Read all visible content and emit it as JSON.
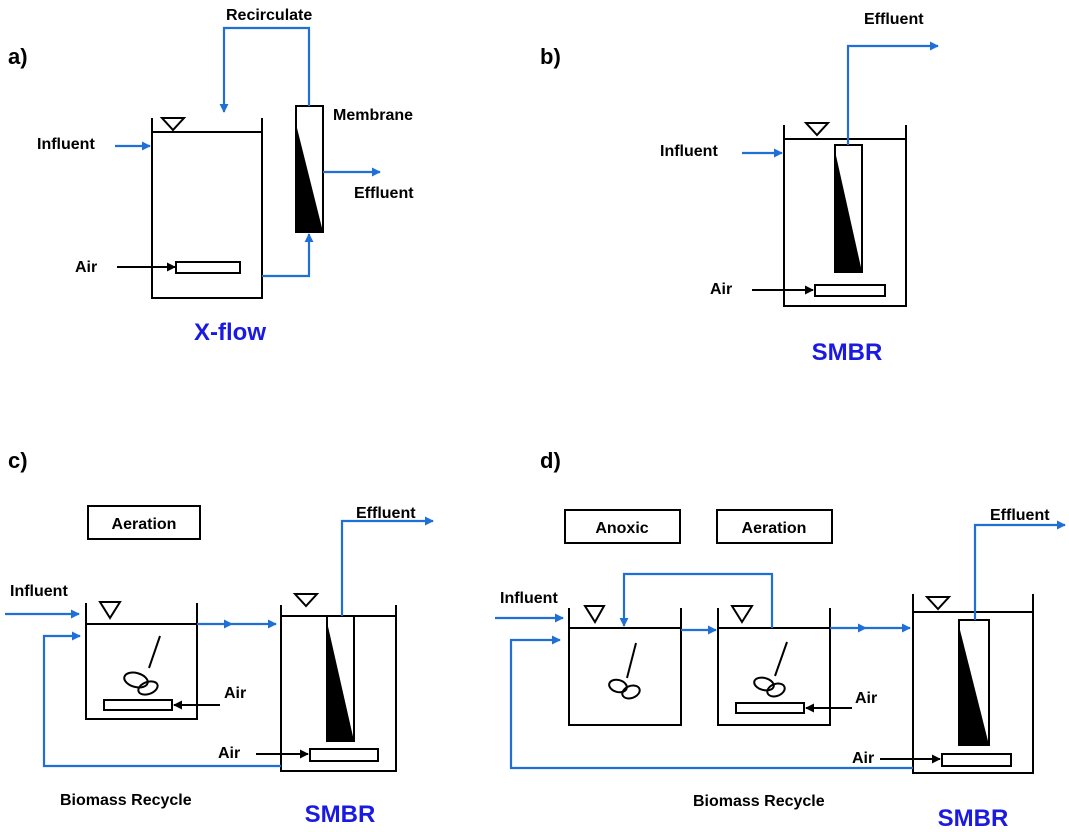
{
  "colors": {
    "flow": "#1f6fd6",
    "caption": "#1a1ae0",
    "ink": "#000000"
  },
  "panel_a": {
    "tag": "a)",
    "recirculate": "Recirculate",
    "membrane": "Membrane",
    "influent": "Influent",
    "effluent": "Effluent",
    "air": "Air",
    "caption": "X-flow"
  },
  "panel_b": {
    "tag": "b)",
    "effluent": "Effluent",
    "influent": "Influent",
    "air": "Air",
    "caption": "SMBR"
  },
  "panel_c": {
    "tag": "c)",
    "aeration": "Aeration",
    "effluent": "Effluent",
    "influent": "Influent",
    "air_tank": "Air",
    "air_membrane": "Air",
    "recycle": "Biomass Recycle",
    "caption": "SMBR"
  },
  "panel_d": {
    "tag": "d)",
    "anoxic": "Anoxic",
    "aeration": "Aeration",
    "effluent": "Effluent",
    "influent": "Influent",
    "air_tank": "Air",
    "air_membrane": "Air",
    "recycle": "Biomass Recycle",
    "caption": "SMBR"
  }
}
